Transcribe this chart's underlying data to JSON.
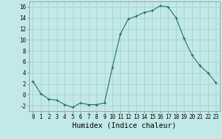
{
  "x": [
    0,
    1,
    2,
    3,
    4,
    5,
    6,
    7,
    8,
    9,
    10,
    11,
    12,
    13,
    14,
    15,
    16,
    17,
    18,
    19,
    20,
    21,
    22,
    23
  ],
  "y": [
    2.5,
    0.2,
    -0.8,
    -1.0,
    -1.8,
    -2.3,
    -1.5,
    -1.8,
    -1.8,
    -1.5,
    5.0,
    11.0,
    13.8,
    14.3,
    15.0,
    15.3,
    16.2,
    16.0,
    14.0,
    10.3,
    7.2,
    5.3,
    4.0,
    2.2
  ],
  "line_color": "#1a6b5a",
  "marker": "+",
  "marker_size": 3,
  "marker_linewidth": 0.8,
  "line_width": 0.8,
  "bg_color": "#c2e8e8",
  "grid_color": "#a0cccc",
  "xlabel": "Humidex (Indice chaleur)",
  "xlim": [
    -0.5,
    23.5
  ],
  "ylim": [
    -3,
    17
  ],
  "yticks": [
    -2,
    0,
    2,
    4,
    6,
    8,
    10,
    12,
    14,
    16
  ],
  "xticks": [
    0,
    1,
    2,
    3,
    4,
    5,
    6,
    7,
    8,
    9,
    10,
    11,
    12,
    13,
    14,
    15,
    16,
    17,
    18,
    19,
    20,
    21,
    22,
    23
  ],
  "tick_label_fontsize": 5.5,
  "xlabel_fontsize": 7.5,
  "spine_color": "#888888"
}
